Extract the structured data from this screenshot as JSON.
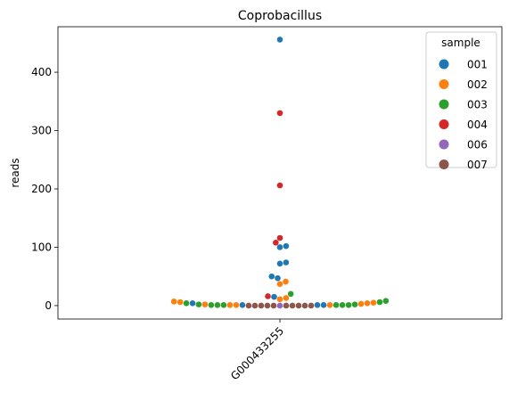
{
  "chart_data": {
    "type": "scatter",
    "subtype": "swarm",
    "title": "Coprobacillus",
    "xlabel": "",
    "ylabel": "reads",
    "categories": [
      "G000433255"
    ],
    "ylim": [
      -23,
      478
    ],
    "yticks": [
      0,
      100,
      200,
      300,
      400
    ],
    "grid": false,
    "legend": {
      "title": "sample",
      "placement": "upper-right"
    },
    "series": [
      {
        "name": "001",
        "color": "#1f77b4",
        "values": [
          456,
          102,
          100,
          74,
          72,
          50,
          47,
          15,
          4,
          1,
          1,
          1
        ]
      },
      {
        "name": "002",
        "color": "#ff7f0e",
        "values": [
          41,
          37,
          13,
          11,
          7,
          6,
          5,
          4,
          3,
          2,
          1,
          1,
          1
        ]
      },
      {
        "name": "003",
        "color": "#2ca02c",
        "values": [
          20,
          8,
          6,
          4,
          2,
          2,
          1,
          1,
          1,
          1,
          1,
          1
        ]
      },
      {
        "name": "004",
        "color": "#d62728",
        "values": [
          330,
          206,
          116,
          108,
          16
        ]
      },
      {
        "name": "006",
        "color": "#9467bd",
        "values": [
          0
        ]
      },
      {
        "name": "007",
        "color": "#8c564b",
        "values": [
          0,
          0,
          0,
          0,
          0,
          0,
          0,
          0,
          0,
          0
        ]
      }
    ]
  }
}
